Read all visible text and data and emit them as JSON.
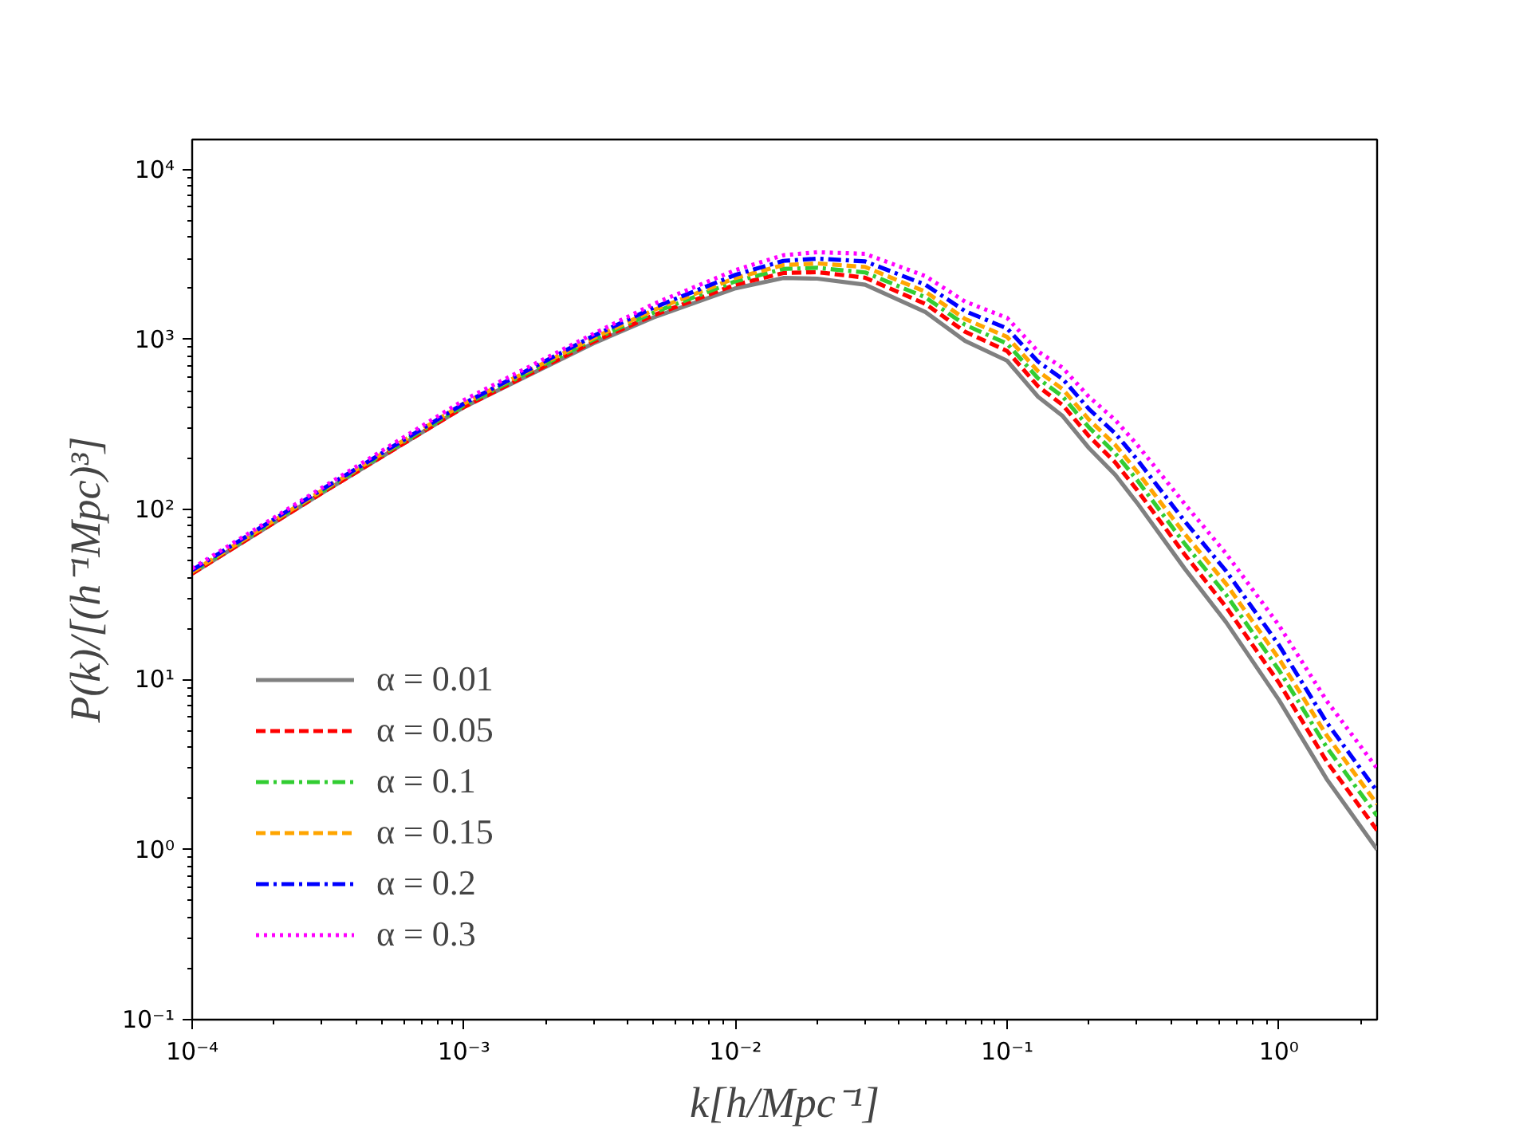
{
  "chart_data": {
    "type": "line",
    "xlabel": "k[h/Mpc⁻¹]",
    "ylabel": "P(k)/[(h⁻¹Mpc)³]",
    "log": "xy",
    "grid": false,
    "legend": "bottom left",
    "marker": "none",
    "xlim": [
      0.0001,
      2.3
    ],
    "ylim": [
      0.1,
      15000
    ],
    "xticks": [
      {
        "value": 0.0001,
        "label": "10⁻⁴"
      },
      {
        "value": 0.001,
        "label": "10⁻³"
      },
      {
        "value": 0.01,
        "label": "10⁻²"
      },
      {
        "value": 0.1,
        "label": "10⁻¹"
      },
      {
        "value": 1,
        "label": "10⁰"
      }
    ],
    "yticks": [
      {
        "value": 0.1,
        "label": "10⁻¹"
      },
      {
        "value": 1,
        "label": "10⁰"
      },
      {
        "value": 10,
        "label": "10¹"
      },
      {
        "value": 100,
        "label": "10²"
      },
      {
        "value": 1000,
        "label": "10³"
      },
      {
        "value": 10000,
        "label": "10⁴"
      }
    ],
    "x": [
      0.0001,
      0.0003,
      0.001,
      0.003,
      0.005,
      0.01,
      0.015,
      0.02,
      0.03,
      0.05,
      0.07,
      0.1,
      0.13,
      0.16,
      0.2,
      0.25,
      0.3,
      0.45,
      0.64,
      1,
      1.5,
      2.3
    ],
    "series": [
      {
        "name": "α = 0.01",
        "color": "#808080",
        "line_style": "solid",
        "values": [
          42,
          125,
          400,
          950,
          1350,
          2000,
          2300,
          2280,
          2100,
          1450,
          980,
          750,
          460,
          355,
          230,
          160,
          110,
          45,
          21.7,
          7.6,
          2.6,
          1.0
        ]
      },
      {
        "name": "α = 0.05",
        "color": "#ff0000",
        "line_style": "dashed",
        "values": [
          42,
          125,
          400,
          970,
          1390,
          2100,
          2460,
          2490,
          2310,
          1620,
          1110,
          855,
          530,
          412,
          270,
          189,
          131,
          54.5,
          26.7,
          9.6,
          3.3,
          1.3
        ]
      },
      {
        "name": "α = 0.1",
        "color": "#32cd32",
        "line_style": "dashdot",
        "values": [
          43,
          128,
          410,
          1000,
          1440,
          2200,
          2600,
          2640,
          2480,
          1770,
          1220,
          945,
          590,
          462,
          304,
          214,
          150,
          63,
          31.5,
          11.4,
          4.0,
          1.58
        ]
      },
      {
        "name": "α = 0.15",
        "color": "#ffa500",
        "line_style": "dashed",
        "values": [
          43,
          129,
          420,
          1020,
          1490,
          2300,
          2740,
          2800,
          2670,
          1910,
          1320,
          1035,
          650,
          511,
          338,
          240,
          168,
          72,
          36.5,
          13.3,
          4.7,
          1.85
        ]
      },
      {
        "name": "α = 0.2",
        "color": "#0000ff",
        "line_style": "dashdot",
        "values": [
          44,
          131,
          420,
          1050,
          1540,
          2400,
          2900,
          2990,
          2880,
          2100,
          1470,
          1160,
          740,
          586,
          390,
          280,
          198,
          85.5,
          43.4,
          16.0,
          5.6,
          2.2
        ]
      },
      {
        "name": "α = 0.3",
        "color": "#ff00ff",
        "line_style": "dotted",
        "values": [
          45,
          134,
          440,
          1080,
          1620,
          2560,
          3130,
          3260,
          3190,
          2360,
          1670,
          1340,
          850,
          682,
          460,
          336,
          242,
          108,
          55,
          20.9,
          7.5,
          3.0
        ]
      }
    ]
  }
}
